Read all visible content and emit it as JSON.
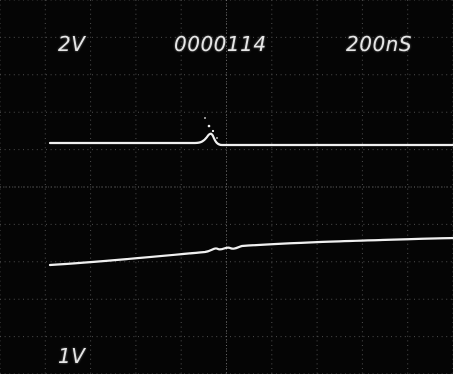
{
  "readout": {
    "channel1_scale": "2V",
    "counter": "0000114",
    "timebase": "200nS",
    "channel2_scale": "1V"
  },
  "style": {
    "screen_background": "#050505",
    "graticule_color": "#8a8a8a",
    "trace_color": "#f0f0f0",
    "text_color": "#e6e6e6"
  }
}
